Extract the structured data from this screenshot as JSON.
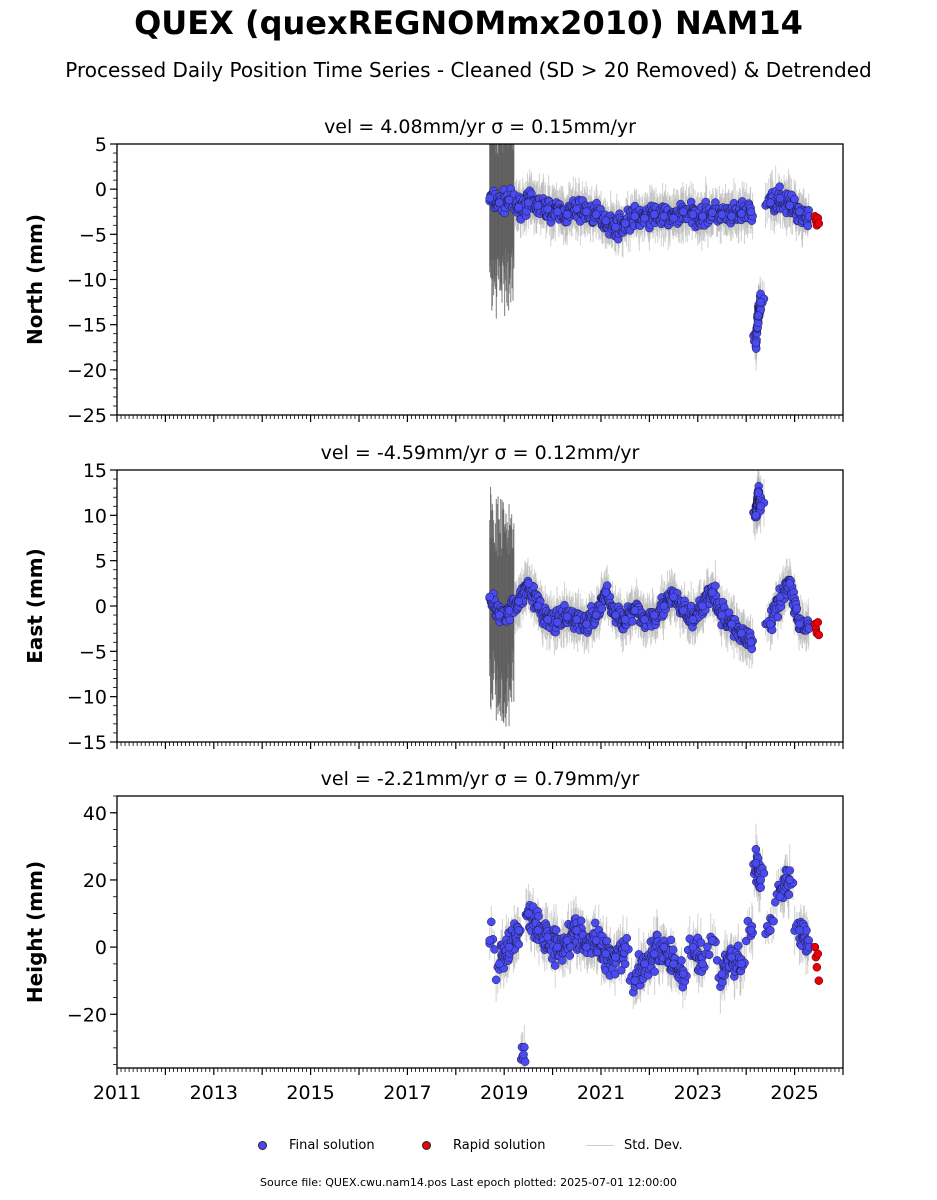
{
  "title": "QUEX (quexREGNOMmx2010) NAM14",
  "subtitle": "Processed Daily Position Time Series - Cleaned (SD > 20 Removed) & Detrended",
  "legend": {
    "final_label": "Final solution",
    "rapid_label": "Rapid solution",
    "std_label": "Std. Dev."
  },
  "footer": "Source file: QUEX.cwu.nam14.pos  Last epoch plotted: 2025-07-01 12:00:00",
  "colors": {
    "final": "#4a4af2",
    "rapid": "#e8000b",
    "std": "#b4b4b4",
    "envelope": "#5a5a5a"
  },
  "chart_data": [
    {
      "type": "scatter",
      "panel": "north",
      "title": "vel = 4.08mm/yr   σ = 0.15mm/yr",
      "ylabel": "North (mm)",
      "xlabel": "",
      "xlim": [
        2011,
        2026
      ],
      "ylim": [
        -25,
        5
      ],
      "yticks": [
        5,
        0,
        -5,
        -10,
        -15,
        -20,
        -25
      ],
      "ytick_labels": [
        "5",
        "0",
        "−5",
        "−10",
        "−15",
        "−20",
        "−25"
      ],
      "grid": false,
      "series": [
        {
          "name": "Final solution",
          "x": [
            2018.7,
            2018.9,
            2019.1,
            2019.3,
            2019.5,
            2019.7,
            2019.9,
            2020.1,
            2020.3,
            2020.5,
            2020.7,
            2020.9,
            2021.1,
            2021.3,
            2021.5,
            2021.7,
            2021.9,
            2022.1,
            2022.3,
            2022.5,
            2022.7,
            2022.9,
            2023.1,
            2023.3,
            2023.5,
            2023.7,
            2023.9,
            2024.1,
            2024.2,
            2024.25,
            2024.3,
            2024.5,
            2024.7,
            2024.9,
            2025.1,
            2025.3
          ],
          "y": [
            -1.0,
            -1.5,
            -1.2,
            -2.0,
            -1.5,
            -1.8,
            -2.2,
            -2.5,
            -2.8,
            -2.2,
            -2.5,
            -2.8,
            -3.5,
            -4.2,
            -3.8,
            -3.0,
            -3.2,
            -2.8,
            -3.0,
            -3.2,
            -2.5,
            -2.8,
            -3.0,
            -2.6,
            -2.8,
            -3.0,
            -2.7,
            -2.5,
            -17.0,
            -14.0,
            -12.5,
            -1.5,
            -1.0,
            -1.8,
            -2.5,
            -3.0
          ]
        },
        {
          "name": "Rapid solution",
          "x": [
            2025.42,
            2025.44,
            2025.46,
            2025.48,
            2025.5
          ],
          "y": [
            -3.0,
            -3.5,
            -4.0,
            -3.2,
            -3.8
          ]
        }
      ]
    },
    {
      "type": "scatter",
      "panel": "east",
      "title": "vel = -4.59mm/yr   σ = 0.12mm/yr",
      "ylabel": "East (mm)",
      "xlabel": "",
      "xlim": [
        2011,
        2026
      ],
      "ylim": [
        -15,
        15
      ],
      "yticks": [
        15,
        10,
        5,
        0,
        -5,
        -10,
        -15
      ],
      "ytick_labels": [
        "15",
        "10",
        "5",
        "0",
        "−5",
        "−10",
        "−15"
      ],
      "grid": false,
      "series": [
        {
          "name": "Final solution",
          "x": [
            2018.7,
            2018.9,
            2019.1,
            2019.3,
            2019.5,
            2019.7,
            2019.9,
            2020.1,
            2020.3,
            2020.5,
            2020.7,
            2020.9,
            2021.1,
            2021.3,
            2021.5,
            2021.7,
            2021.9,
            2022.1,
            2022.3,
            2022.5,
            2022.7,
            2022.9,
            2023.1,
            2023.3,
            2023.5,
            2023.7,
            2023.9,
            2024.1,
            2024.2,
            2024.25,
            2024.3,
            2024.5,
            2024.7,
            2024.9,
            2025.1,
            2025.3
          ],
          "y": [
            1.0,
            -1.0,
            -0.5,
            0.5,
            2.5,
            0.0,
            -1.5,
            -1.8,
            -1.2,
            -1.5,
            -2.0,
            -1.0,
            1.5,
            -1.0,
            -1.5,
            -0.5,
            -1.5,
            -1.0,
            0.0,
            1.0,
            -0.5,
            -1.5,
            0.0,
            1.5,
            -1.0,
            -2.0,
            -3.0,
            -4.0,
            10.0,
            12.5,
            11.0,
            -2.0,
            1.0,
            2.5,
            -2.0,
            -2.5
          ]
        },
        {
          "name": "Rapid solution",
          "x": [
            2025.42,
            2025.44,
            2025.46,
            2025.48,
            2025.5
          ],
          "y": [
            -2.0,
            -2.5,
            -3.0,
            -1.8,
            -3.2
          ]
        }
      ]
    },
    {
      "type": "scatter",
      "panel": "height",
      "title": "vel = -2.21mm/yr   σ = 0.79mm/yr",
      "ylabel": "Height (mm)",
      "xlabel": "",
      "xlim": [
        2011,
        2026
      ],
      "ylim": [
        -36,
        45
      ],
      "yticks": [
        40,
        20,
        0,
        -20
      ],
      "ytick_labels": [
        "40",
        "20",
        "0",
        "−20"
      ],
      "xticks": [
        2011,
        2013,
        2015,
        2017,
        2019,
        2021,
        2023,
        2025
      ],
      "xtick_labels": [
        "2011",
        "2013",
        "2015",
        "2017",
        "2019",
        "2021",
        "2023",
        "2025"
      ],
      "grid": false,
      "series": [
        {
          "name": "Final solution",
          "x": [
            2018.7,
            2018.9,
            2019.1,
            2019.3,
            2019.4,
            2019.5,
            2019.7,
            2019.9,
            2020.1,
            2020.3,
            2020.5,
            2020.7,
            2020.9,
            2021.1,
            2021.3,
            2021.5,
            2021.7,
            2021.9,
            2022.1,
            2022.3,
            2022.5,
            2022.7,
            2022.9,
            2023.1,
            2023.3,
            2023.5,
            2023.7,
            2023.9,
            2024.1,
            2024.2,
            2024.3,
            2024.5,
            2024.7,
            2024.9,
            2025.1,
            2025.3
          ],
          "y": [
            2.0,
            -5.0,
            0.0,
            5.0,
            -32.0,
            10.0,
            5.0,
            3.0,
            0.0,
            2.0,
            5.0,
            0.0,
            2.0,
            -2.0,
            -3.0,
            0.0,
            -10.0,
            -5.0,
            -2.0,
            0.0,
            -5.0,
            -8.0,
            0.0,
            -5.0,
            2.0,
            -8.0,
            -3.0,
            -5.0,
            5.0,
            25.0,
            20.0,
            5.0,
            15.0,
            20.0,
            5.0,
            0.0
          ]
        },
        {
          "name": "Rapid solution",
          "x": [
            2025.42,
            2025.44,
            2025.46,
            2025.48,
            2025.5
          ],
          "y": [
            0.0,
            -3.0,
            -6.0,
            -2.0,
            -10.0
          ]
        }
      ]
    }
  ]
}
